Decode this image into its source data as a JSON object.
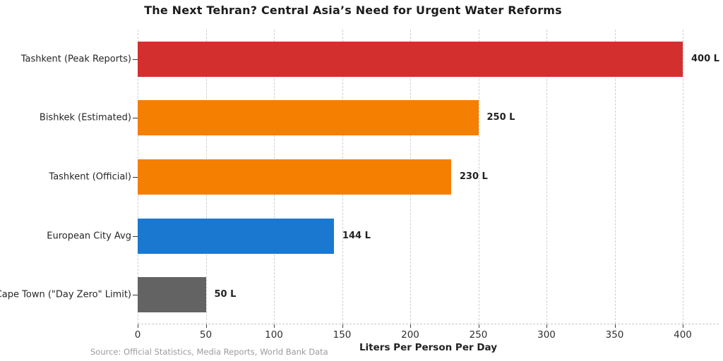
{
  "title": "The Next Tehran? Central Asia’s Need for Urgent Water Reforms",
  "source_note": "Source: Official Statistics, Media Reports, World Bank Data",
  "chart_data": {
    "type": "bar",
    "orientation": "horizontal",
    "title": "The Next Tehran? Central Asia’s Need for Urgent Water Reforms",
    "categories": [
      "Tashkent (Peak Reports)",
      "Bishkek (Estimated)",
      "Tashkent (Official)",
      "European City Avg",
      "Cape Town (\"Day Zero\" Limit)"
    ],
    "values": [
      400,
      250,
      230,
      144,
      50
    ],
    "value_labels": [
      "400 L",
      "250 L",
      "230 L",
      "144 L",
      "50 L"
    ],
    "bar_colors": [
      "#d32f2f",
      "#f57f00",
      "#f57f00",
      "#1b78d1",
      "#636363"
    ],
    "xlabel": "Liters Per Person Per Day",
    "ylabel": "",
    "x_ticks": [
      0,
      50,
      100,
      150,
      200,
      250,
      300,
      350,
      400
    ],
    "xlim": [
      0,
      426
    ],
    "grid": "vertical dashed",
    "legend": "none",
    "source": "Source: Official Statistics, Media Reports, World Bank Data"
  },
  "style": {
    "grid_color": "#cecece",
    "axis_tick_color": "#444444",
    "title_color": "#1c1c1c",
    "label_color": "#262626",
    "source_color": "#9b9b9b",
    "background": "#ffffff"
  }
}
